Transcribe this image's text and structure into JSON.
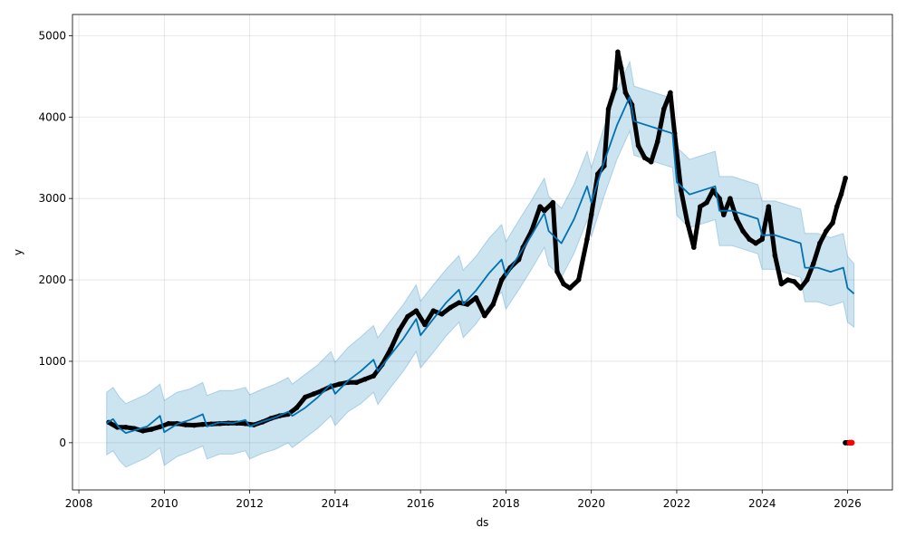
{
  "chart_data": {
    "type": "line",
    "title": "",
    "xlabel": "ds",
    "ylabel": "y",
    "xlim": [
      2007.85,
      2027.05
    ],
    "ylim": [
      -580,
      5260
    ],
    "x_ticks": [
      2008,
      2010,
      2012,
      2014,
      2016,
      2018,
      2020,
      2022,
      2024,
      2026
    ],
    "x_tick_labels": [
      "2008",
      "2010",
      "2012",
      "2014",
      "2016",
      "2018",
      "2020",
      "2022",
      "2024",
      "2026"
    ],
    "y_ticks": [
      0,
      1000,
      2000,
      3000,
      4000,
      5000
    ],
    "y_tick_labels": [
      "0",
      "1000",
      "2000",
      "3000",
      "4000",
      "5000"
    ],
    "grid": true,
    "colors": {
      "observed": "#000000",
      "forecast": "#0072B2",
      "interval_fill": "#0072B2",
      "anomaly": "#ff0000"
    },
    "series": [
      {
        "kind": "forecast",
        "x": [
          2008.65,
          2008.8,
          2008.95,
          2009.1,
          2009.35,
          2009.6,
          2009.9,
          2010.0,
          2010.3,
          2010.6,
          2010.9,
          2011.0,
          2011.3,
          2011.6,
          2011.9,
          2012.0,
          2012.3,
          2012.6,
          2012.9,
          2013.0,
          2013.3,
          2013.6,
          2013.9,
          2014.0,
          2014.3,
          2014.6,
          2014.9,
          2015.0,
          2015.3,
          2015.6,
          2015.9,
          2016.0,
          2016.3,
          2016.6,
          2016.9,
          2017.0,
          2017.3,
          2017.6,
          2017.9,
          2018.0,
          2018.3,
          2018.6,
          2018.9,
          2019.0,
          2019.3,
          2019.6,
          2019.9,
          2020.0,
          2020.3,
          2020.6,
          2020.9,
          2021.0,
          2021.3,
          2021.6,
          2021.9,
          2022.0,
          2022.3,
          2022.6,
          2022.9,
          2023.0,
          2023.3,
          2023.6,
          2023.9,
          2024.0,
          2024.3,
          2024.6,
          2024.9,
          2025.0,
          2025.3,
          2025.6,
          2025.9,
          2026.0,
          2026.15
        ],
        "y": [
          240,
          290,
          180,
          120,
          160,
          200,
          330,
          130,
          230,
          280,
          350,
          200,
          250,
          240,
          280,
          200,
          260,
          310,
          380,
          330,
          430,
          560,
          720,
          600,
          760,
          880,
          1020,
          880,
          1080,
          1280,
          1520,
          1320,
          1520,
          1720,
          1880,
          1700,
          1870,
          2080,
          2250,
          2050,
          2300,
          2550,
          2820,
          2600,
          2450,
          2750,
          3150,
          2950,
          3450,
          3900,
          4250,
          3950,
          3900,
          3850,
          3800,
          3200,
          3050,
          3100,
          3150,
          2850,
          2850,
          2800,
          2750,
          2550,
          2550,
          2500,
          2450,
          2150,
          2150,
          2100,
          2150,
          1900,
          1830
        ]
      },
      {
        "kind": "interval_upper",
        "x": [
          2008.65,
          2008.8,
          2008.95,
          2009.1,
          2009.35,
          2009.6,
          2009.9,
          2010.0,
          2010.3,
          2010.6,
          2010.9,
          2011.0,
          2011.3,
          2011.6,
          2011.9,
          2012.0,
          2012.3,
          2012.6,
          2012.9,
          2013.0,
          2013.3,
          2013.6,
          2013.9,
          2014.0,
          2014.3,
          2014.6,
          2014.9,
          2015.0,
          2015.3,
          2015.6,
          2015.9,
          2016.0,
          2016.3,
          2016.6,
          2016.9,
          2017.0,
          2017.3,
          2017.6,
          2017.9,
          2018.0,
          2018.3,
          2018.6,
          2018.9,
          2019.0,
          2019.3,
          2019.6,
          2019.9,
          2020.0,
          2020.3,
          2020.6,
          2020.9,
          2021.0,
          2021.3,
          2021.6,
          2021.9,
          2022.0,
          2022.3,
          2022.6,
          2022.9,
          2023.0,
          2023.3,
          2023.6,
          2023.9,
          2024.0,
          2024.3,
          2024.6,
          2024.9,
          2025.0,
          2025.3,
          2025.6,
          2025.9,
          2026.0,
          2026.15
        ],
        "y": [
          620,
          680,
          560,
          480,
          540,
          600,
          720,
          520,
          620,
          660,
          740,
          580,
          640,
          640,
          680,
          590,
          660,
          720,
          800,
          720,
          840,
          960,
          1120,
          990,
          1170,
          1300,
          1440,
          1290,
          1500,
          1700,
          1940,
          1740,
          1940,
          2130,
          2300,
          2120,
          2290,
          2510,
          2680,
          2470,
          2730,
          2980,
          3250,
          3030,
          2880,
          3180,
          3580,
          3380,
          3880,
          4330,
          4680,
          4380,
          4330,
          4280,
          4230,
          3630,
          3480,
          3530,
          3580,
          3270,
          3270,
          3220,
          3170,
          2970,
          2970,
          2920,
          2870,
          2570,
          2570,
          2520,
          2570,
          2290,
          2200
        ]
      },
      {
        "kind": "interval_lower",
        "x": [
          2008.65,
          2008.8,
          2008.95,
          2009.1,
          2009.35,
          2009.6,
          2009.9,
          2010.0,
          2010.3,
          2010.6,
          2010.9,
          2011.0,
          2011.3,
          2011.6,
          2011.9,
          2012.0,
          2012.3,
          2012.6,
          2012.9,
          2013.0,
          2013.3,
          2013.6,
          2013.9,
          2014.0,
          2014.3,
          2014.6,
          2014.9,
          2015.0,
          2015.3,
          2015.6,
          2015.9,
          2016.0,
          2016.3,
          2016.6,
          2016.9,
          2017.0,
          2017.3,
          2017.6,
          2017.9,
          2018.0,
          2018.3,
          2018.6,
          2018.9,
          2019.0,
          2019.3,
          2019.6,
          2019.9,
          2020.0,
          2020.3,
          2020.6,
          2020.9,
          2021.0,
          2021.3,
          2021.6,
          2021.9,
          2022.0,
          2022.3,
          2022.6,
          2022.9,
          2023.0,
          2023.3,
          2023.6,
          2023.9,
          2024.0,
          2024.3,
          2024.6,
          2024.9,
          2025.0,
          2025.3,
          2025.6,
          2025.9,
          2026.0,
          2026.15
        ],
        "y": [
          -150,
          -100,
          -220,
          -300,
          -240,
          -180,
          -60,
          -280,
          -170,
          -110,
          -40,
          -200,
          -140,
          -140,
          -100,
          -200,
          -130,
          -80,
          0,
          -60,
          60,
          180,
          330,
          210,
          380,
          480,
          620,
          470,
          680,
          880,
          1120,
          920,
          1110,
          1310,
          1480,
          1290,
          1460,
          1680,
          1850,
          1640,
          1880,
          2130,
          2400,
          2180,
          2030,
          2330,
          2730,
          2530,
          3030,
          3480,
          3830,
          3530,
          3480,
          3430,
          3380,
          2790,
          2640,
          2690,
          2740,
          2420,
          2420,
          2370,
          2320,
          2130,
          2130,
          2080,
          2030,
          1730,
          1730,
          1680,
          1730,
          1480,
          1420
        ]
      },
      {
        "kind": "observed",
        "x": [
          2008.7,
          2008.9,
          2009.1,
          2009.3,
          2009.5,
          2009.7,
          2009.9,
          2010.1,
          2010.3,
          2010.5,
          2010.7,
          2010.9,
          2011.1,
          2011.3,
          2011.5,
          2011.7,
          2011.9,
          2012.1,
          2012.3,
          2012.5,
          2012.7,
          2012.9,
          2013.1,
          2013.3,
          2013.5,
          2013.7,
          2013.9,
          2014.1,
          2014.3,
          2014.5,
          2014.7,
          2014.9,
          2015.1,
          2015.3,
          2015.5,
          2015.7,
          2015.9,
          2016.1,
          2016.3,
          2016.5,
          2016.7,
          2016.9,
          2017.1,
          2017.3,
          2017.5,
          2017.7,
          2017.9,
          2018.1,
          2018.3,
          2018.4,
          2018.6,
          2018.8,
          2018.9,
          2019.1,
          2019.2,
          2019.35,
          2019.5,
          2019.7,
          2019.9,
          2020.0,
          2020.15,
          2020.3,
          2020.4,
          2020.55,
          2020.62,
          2020.7,
          2020.8,
          2020.95,
          2021.1,
          2021.25,
          2021.4,
          2021.55,
          2021.7,
          2021.85,
          2021.95,
          2022.1,
          2022.25,
          2022.4,
          2022.55,
          2022.7,
          2022.85,
          2023.0,
          2023.1,
          2023.25,
          2023.4,
          2023.55,
          2023.7,
          2023.85,
          2024.0,
          2024.15,
          2024.3,
          2024.45,
          2024.6,
          2024.75,
          2024.9,
          2025.05,
          2025.2,
          2025.35,
          2025.5,
          2025.65,
          2025.75,
          2025.85,
          2025.95
        ],
        "y": [
          250,
          190,
          190,
          175,
          145,
          165,
          195,
          235,
          235,
          220,
          215,
          225,
          230,
          235,
          240,
          240,
          235,
          220,
          255,
          300,
          330,
          350,
          430,
          560,
          600,
          640,
          690,
          720,
          740,
          740,
          780,
          820,
          960,
          1150,
          1380,
          1550,
          1620,
          1450,
          1620,
          1580,
          1660,
          1720,
          1700,
          1780,
          1560,
          1700,
          2000,
          2150,
          2250,
          2400,
          2600,
          2900,
          2850,
          2950,
          2100,
          1950,
          1900,
          2000,
          2500,
          2800,
          3300,
          3400,
          4100,
          4350,
          4800,
          4600,
          4300,
          4150,
          3650,
          3500,
          3450,
          3700,
          4100,
          4300,
          3800,
          3100,
          2700,
          2400,
          2900,
          2950,
          3100,
          3000,
          2800,
          3000,
          2750,
          2600,
          2500,
          2450,
          2500,
          2900,
          2300,
          1950,
          2000,
          1980,
          1900,
          2000,
          2200,
          2450,
          2600,
          2700,
          2900,
          3050,
          3250
        ]
      },
      {
        "kind": "anomaly",
        "x": [
          2026.05,
          2026.08,
          2026.1
        ],
        "y": [
          0,
          0,
          0
        ]
      },
      {
        "kind": "observed_tail",
        "x": [
          2025.95,
          2026.0
        ],
        "y": [
          0,
          0
        ]
      }
    ]
  }
}
